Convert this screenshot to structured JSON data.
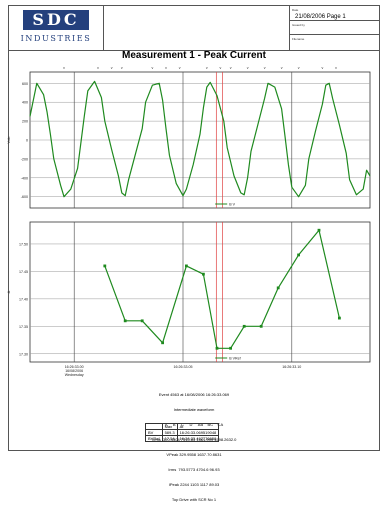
{
  "header": {
    "logo_main": "SDC",
    "logo_sub": "INDUSTRIES",
    "date_page": "21/08/2006 Page 1",
    "small_labels": [
      "Date",
      "Issued by",
      "Filename"
    ]
  },
  "chart_title": "Measurement 1 - Peak Current",
  "chart_data": [
    {
      "type": "line",
      "ylabel": "Vdc",
      "yticks": [
        "600",
        "400",
        "200",
        "0",
        "-200",
        "-400",
        "-600"
      ],
      "ylim": [
        -720,
        720
      ],
      "xlim": [
        0,
        100
      ],
      "colors": {
        "line": "#1f8a1f",
        "cursor": "#e04040",
        "grid": "#333333"
      },
      "legend": "B V",
      "series": [
        {
          "name": "B V",
          "x": [
            0,
            2,
            4,
            5,
            6,
            7,
            9,
            10,
            12,
            14,
            15,
            16,
            17,
            19,
            21,
            22,
            24,
            26,
            27,
            28,
            29,
            31,
            33,
            34,
            36,
            38,
            39,
            40,
            41,
            43,
            45,
            46,
            48,
            50,
            51,
            52,
            53,
            55,
            57,
            58,
            60,
            62,
            63,
            64,
            65,
            67,
            69,
            70,
            72,
            74,
            75,
            76,
            77,
            79,
            81,
            82,
            84,
            86,
            87,
            88,
            89,
            91,
            93,
            94,
            96,
            98,
            99,
            100
          ],
          "y": [
            250,
            600,
            480,
            300,
            60,
            -200,
            -480,
            -600,
            -520,
            -300,
            -20,
            260,
            520,
            620,
            450,
            200,
            -100,
            -380,
            -560,
            -590,
            -420,
            -150,
            120,
            400,
            580,
            600,
            420,
            120,
            -160,
            -460,
            -590,
            -520,
            -260,
            60,
            340,
            560,
            610,
            470,
            200,
            -80,
            -380,
            -560,
            -580,
            -400,
            -120,
            160,
            440,
            600,
            560,
            330,
            40,
            -260,
            -500,
            -600,
            -480,
            -200,
            100,
            380,
            580,
            600,
            440,
            160,
            -140,
            -420,
            -580,
            -520,
            -320,
            -380
          ]
        }
      ]
    },
    {
      "type": "line",
      "ylabel": "A",
      "yticks": [
        "17.50",
        "17.45",
        "17.40",
        "17.35",
        "17.30"
      ],
      "ylim": [
        17.285,
        17.54
      ],
      "xlim": [
        0,
        100
      ],
      "xticks": [
        "16:26:33.00\n16/08/2006\nWednesday",
        "16:26:33.05",
        "16:26:33.10"
      ],
      "legend": "B VRef",
      "series": [
        {
          "name": "B VRef",
          "x": [
            22,
            28,
            33,
            39,
            46,
            51,
            55,
            59,
            63,
            68,
            73,
            79,
            85,
            91
          ],
          "y": [
            17.46,
            17.36,
            17.36,
            17.32,
            17.46,
            17.445,
            17.31,
            17.31,
            17.35,
            17.35,
            17.42,
            17.48,
            17.525,
            17.365
          ]
        }
      ]
    }
  ],
  "info": {
    "lines": [
      "Event 4563 at 16/08/2006 16:26:33.069",
      "Intermediate waveform",
      "A     B     C     D     AB    BC    CA",
      "Vrms  320.4304 7310.63 1561.999 1598.2632.0",
      "VPeak 329.9558 1637.70 8631",
      "Irms  793.5773 4704.6 96.93",
      "IPeak 2244 1103 1117 89.03",
      "Top Drive with SCR No 1"
    ],
    "table": {
      "header": [
        "",
        "Max",
        "At"
      ],
      "rows": [
        [
          "BV",
          "589.3",
          "16:26:33.069519048"
        ],
        [
          "BVRef",
          "17.54",
          "16:26:33.497776658"
        ]
      ]
    }
  }
}
